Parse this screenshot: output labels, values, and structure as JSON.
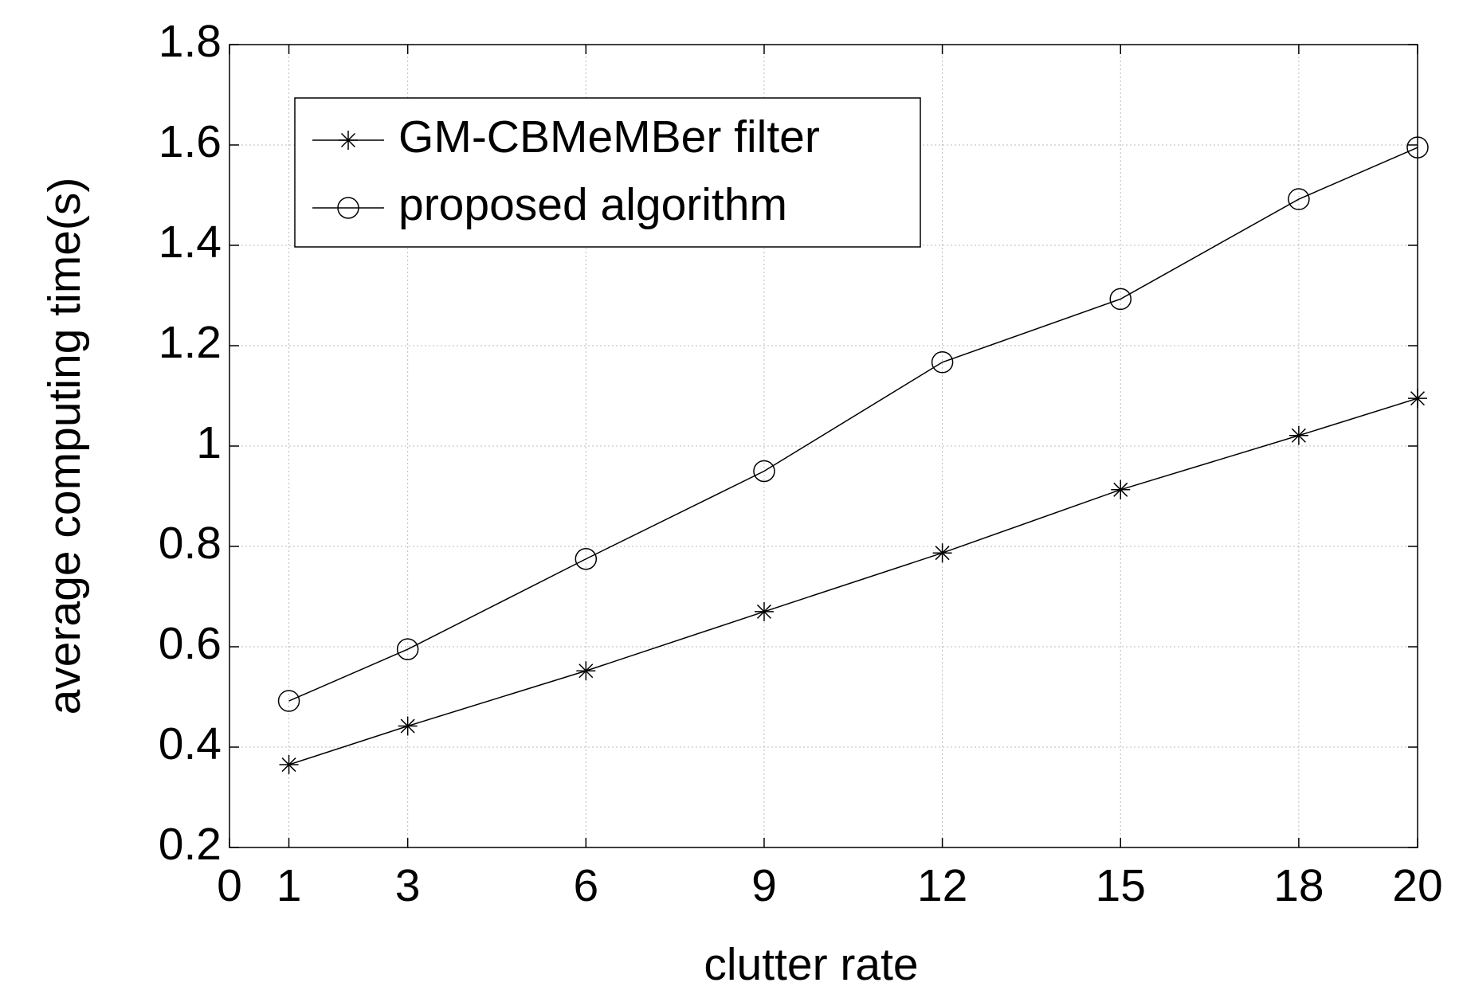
{
  "chart_data": {
    "type": "line",
    "x_label": "clutter rate",
    "y_label": "average computing time(s)",
    "x": [
      1,
      3,
      6,
      9,
      12,
      15,
      18,
      20
    ],
    "series": [
      {
        "name": "GM-CBMeMBer filter",
        "color": "#000000",
        "marker": "star",
        "values": [
          0.365,
          0.442,
          0.552,
          0.67,
          0.787,
          0.913,
          1.021,
          1.095
        ]
      },
      {
        "name": "proposed algorithm",
        "color": "#000000",
        "marker": "circle",
        "values": [
          0.492,
          0.595,
          0.775,
          0.95,
          1.167,
          1.293,
          1.492,
          1.595
        ]
      }
    ],
    "xlim": [
      0,
      20
    ],
    "xticks": [
      0,
      1,
      3,
      6,
      9,
      12,
      15,
      18,
      20
    ],
    "ylim": [
      0.2,
      1.8
    ],
    "yticks": [
      0.2,
      0.4,
      0.6,
      0.8,
      1,
      1.2,
      1.4,
      1.6,
      1.8
    ],
    "grid": true,
    "legend": "upper left"
  }
}
